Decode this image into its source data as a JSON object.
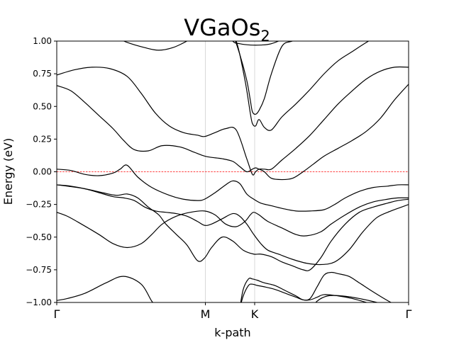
{
  "chart_data": {
    "type": "line",
    "title_main": "VGaOs",
    "title_sub": "2",
    "xlabel": "k-path",
    "ylabel": "Energy (eV)",
    "ylim": [
      -1.0,
      1.0
    ],
    "xlim": [
      0,
      1
    ],
    "grid": false,
    "legend": "none",
    "kpoints": [
      {
        "label": "Γ",
        "x": 0.0
      },
      {
        "label": "M",
        "x": 0.4225
      },
      {
        "label": "K",
        "x": 0.5625
      },
      {
        "label": "Γ",
        "x": 1.0
      }
    ],
    "yticks": [
      -1.0,
      -0.75,
      -0.5,
      -0.25,
      0.0,
      0.25,
      0.5,
      0.75,
      1.0
    ],
    "ytick_labels": [
      "−1.00",
      "−0.75",
      "−0.50",
      "−0.25",
      "0.00",
      "0.25",
      "0.50",
      "0.75",
      "1.00"
    ],
    "fermi_level": 0.0,
    "line_color": "#000000",
    "fermi_color": "#ff0000",
    "series": [
      {
        "x": [
          0.0,
          0.03,
          0.08,
          0.14,
          0.19,
          0.24,
          0.27,
          0.29,
          0.31,
          0.33,
          0.36,
          0.4,
          0.42,
          0.45,
          0.48,
          0.51,
          0.53,
          0.55,
          0.56,
          0.58,
          0.61,
          0.64,
          0.69,
          0.72,
          0.75,
          0.78,
          0.82,
          0.87,
          0.91,
          0.95,
          0.98,
          1.0
        ],
        "y": [
          -0.985,
          -0.97,
          -0.93,
          -0.85,
          -0.8,
          -0.86,
          -0.99,
          -1.05,
          -1.1,
          -1.1,
          -1.1,
          -1.1,
          -1.1,
          -1.1,
          -1.1,
          -1.1,
          -1.1,
          -1.1,
          -1.1,
          -1.1,
          -1.1,
          -1.1,
          -1.1,
          -1.1,
          -1.1,
          -1.1,
          -1.1,
          -1.1,
          -1.1,
          -1.1,
          -1.1,
          -1.1
        ]
      },
      {
        "x": [
          0.0,
          0.03,
          0.07,
          0.12,
          0.16,
          0.2,
          0.24,
          0.27,
          0.3,
          0.34,
          0.38,
          0.42,
          0.45,
          0.48,
          0.51,
          0.535,
          0.55,
          0.56,
          0.575,
          0.6,
          0.64,
          0.68,
          0.71,
          0.75,
          0.78,
          0.82,
          0.86,
          0.9,
          0.94,
          0.97,
          1.0
        ],
        "y": [
          -0.31,
          -0.34,
          -0.4,
          -0.48,
          -0.55,
          -0.58,
          -0.55,
          -0.48,
          -0.4,
          -0.34,
          -0.31,
          -0.3,
          -0.33,
          -0.4,
          -0.42,
          -0.38,
          -0.33,
          -0.31,
          -0.33,
          -0.38,
          -0.43,
          -0.48,
          -0.49,
          -0.46,
          -0.4,
          -0.33,
          -0.27,
          -0.23,
          -0.21,
          -0.2,
          -0.2
        ]
      },
      {
        "x": [
          0.0,
          0.03,
          0.08,
          0.13,
          0.17,
          0.2,
          0.23,
          0.26,
          0.29,
          0.31,
          0.34,
          0.37,
          0.4,
          0.42,
          0.44,
          0.47,
          0.5,
          0.53,
          0.56,
          0.58,
          0.61,
          0.64,
          0.67,
          0.7,
          0.72,
          0.75,
          0.78,
          0.82,
          0.86,
          0.9,
          0.94,
          0.97,
          1.0
        ],
        "y": [
          -0.1,
          -0.11,
          -0.13,
          -0.16,
          -0.18,
          -0.17,
          -0.2,
          -0.27,
          -0.33,
          -0.4,
          -0.48,
          -0.56,
          -0.68,
          -0.66,
          -0.58,
          -0.5,
          -0.53,
          -0.6,
          -0.63,
          -0.63,
          -0.65,
          -0.69,
          -0.72,
          -0.75,
          -0.75,
          -0.66,
          -0.53,
          -0.4,
          -0.31,
          -0.27,
          -0.24,
          -0.22,
          -0.21
        ]
      },
      {
        "x": [
          0.0,
          0.04,
          0.08,
          0.12,
          0.16,
          0.18,
          0.2,
          0.23,
          0.27,
          0.32,
          0.36,
          0.4,
          0.42,
          0.45,
          0.48,
          0.5,
          0.52,
          0.54,
          0.56,
          0.58,
          0.61,
          0.64,
          0.68,
          0.72,
          0.76,
          0.79,
          0.82,
          0.86,
          0.9,
          0.94,
          0.97,
          1.0
        ],
        "y": [
          0.02,
          0.01,
          -0.02,
          -0.03,
          -0.01,
          0.02,
          0.05,
          -0.04,
          -0.12,
          -0.18,
          -0.21,
          -0.22,
          -0.21,
          -0.16,
          -0.1,
          -0.07,
          -0.09,
          -0.17,
          -0.21,
          -0.24,
          -0.26,
          -0.28,
          -0.3,
          -0.3,
          -0.29,
          -0.25,
          -0.2,
          -0.15,
          -0.12,
          -0.11,
          -0.1,
          -0.1
        ]
      },
      {
        "x": [
          0.0,
          0.04,
          0.08,
          0.12,
          0.16,
          0.19,
          0.22,
          0.25,
          0.28,
          0.31,
          0.34,
          0.37,
          0.4,
          0.42,
          0.44,
          0.47,
          0.5,
          0.52,
          0.54,
          0.56,
          0.58,
          0.6,
          0.63,
          0.67,
          0.71,
          0.75,
          0.79,
          0.83,
          0.87,
          0.91,
          0.95,
          0.98,
          1.0
        ],
        "y": [
          -0.1,
          -0.11,
          -0.13,
          -0.16,
          -0.19,
          -0.2,
          -0.22,
          -0.27,
          -0.3,
          -0.31,
          -0.32,
          -0.34,
          -0.38,
          -0.41,
          -0.4,
          -0.36,
          -0.32,
          -0.34,
          -0.4,
          -0.48,
          -0.55,
          -0.6,
          -0.63,
          -0.67,
          -0.7,
          -0.71,
          -0.69,
          -0.6,
          -0.46,
          -0.35,
          -0.3,
          -0.27,
          -0.25
        ]
      },
      {
        "x": [
          0.0,
          0.04,
          0.08,
          0.12,
          0.16,
          0.19,
          0.22,
          0.26,
          0.3,
          0.35,
          0.39,
          0.42,
          0.44,
          0.47,
          0.5,
          0.52,
          0.54,
          0.556,
          0.565,
          0.575,
          0.59,
          0.61,
          0.64,
          0.67,
          0.7,
          0.73,
          0.76,
          0.8,
          0.84,
          0.88,
          0.92,
          0.96,
          1.0
        ],
        "y": [
          0.66,
          0.62,
          0.53,
          0.43,
          0.33,
          0.24,
          0.17,
          0.16,
          0.2,
          0.19,
          0.15,
          0.12,
          0.11,
          0.1,
          0.08,
          0.04,
          0.0,
          0.02,
          0.03,
          0.02,
          0.0,
          -0.05,
          -0.06,
          -0.05,
          0.0,
          0.06,
          0.12,
          0.18,
          0.24,
          0.31,
          0.41,
          0.55,
          0.67
        ]
      },
      {
        "x": [
          0.0,
          0.05,
          0.1,
          0.15,
          0.2,
          0.24,
          0.28,
          0.32,
          0.36,
          0.4,
          0.42,
          0.45,
          0.48,
          0.51,
          0.54,
          0.556,
          0.565,
          0.575,
          0.59,
          0.61,
          0.64,
          0.68,
          0.72,
          0.76,
          0.8,
          0.84,
          0.88,
          0.92,
          0.96,
          1.0
        ],
        "y": [
          0.74,
          0.78,
          0.8,
          0.79,
          0.73,
          0.6,
          0.45,
          0.35,
          0.3,
          0.28,
          0.27,
          0.3,
          0.33,
          0.32,
          0.1,
          -0.02,
          0.0,
          0.02,
          0.02,
          0.02,
          0.09,
          0.18,
          0.28,
          0.4,
          0.52,
          0.62,
          0.71,
          0.77,
          0.8,
          0.8
        ]
      },
      {
        "x": [
          0.0,
          0.05,
          0.1,
          0.15,
          0.2,
          0.25,
          0.29,
          0.33,
          0.37,
          0.4,
          0.42,
          0.45,
          0.48,
          0.51,
          0.535,
          0.55,
          0.556,
          0.565,
          0.575,
          0.59,
          0.61,
          0.64,
          0.68,
          0.72,
          0.76,
          0.8,
          0.84,
          0.88,
          0.92,
          0.96,
          1.0
        ],
        "y": [
          1.1,
          1.1,
          1.1,
          1.05,
          0.99,
          0.95,
          0.93,
          0.95,
          1.0,
          1.05,
          1.1,
          1.1,
          1.1,
          1.0,
          0.7,
          0.45,
          0.37,
          0.35,
          0.4,
          0.34,
          0.32,
          0.42,
          0.52,
          0.63,
          0.75,
          0.85,
          0.92,
          0.99,
          1.05,
          1.1,
          1.1
        ]
      },
      {
        "x": [
          0.48,
          0.5,
          0.52,
          0.54,
          0.55,
          0.556,
          0.565,
          0.575,
          0.59,
          0.61,
          0.64,
          0.67,
          0.7,
          0.73,
          0.76,
          0.79,
          0.82,
          0.85,
          0.88,
          0.92,
          0.96,
          1.0
        ],
        "y": [
          1.1,
          1.05,
          0.9,
          0.7,
          0.55,
          0.46,
          0.44,
          0.47,
          0.56,
          0.75,
          0.96,
          1.0,
          1.03,
          1.06,
          1.08,
          1.1,
          1.1,
          1.1,
          1.1,
          1.1,
          1.1,
          1.1
        ]
      },
      {
        "x": [
          0.48,
          0.5,
          0.52,
          0.55,
          0.58,
          0.61,
          0.65,
          0.7,
          0.75,
          0.8,
          0.85,
          0.9,
          0.95,
          1.0
        ],
        "y": [
          1.1,
          1.0,
          0.98,
          0.97,
          0.97,
          0.98,
          1.02,
          1.06,
          1.1,
          1.1,
          1.1,
          1.1,
          1.1,
          1.1
        ]
      },
      {
        "x": [
          0.52,
          0.53,
          0.545,
          0.556,
          0.57,
          0.59,
          0.62,
          0.65,
          0.68,
          0.7,
          0.72,
          0.74,
          0.76,
          0.8,
          0.84,
          0.88,
          0.92,
          0.96,
          1.0
        ],
        "y": [
          -1.05,
          -0.95,
          -0.87,
          -0.86,
          -0.87,
          -0.88,
          -0.9,
          -0.93,
          -0.96,
          -0.98,
          -0.98,
          -0.96,
          -0.94,
          -0.95,
          -0.97,
          -1.0,
          -1.03,
          -1.07,
          -1.1
        ]
      },
      {
        "x": [
          0.52,
          0.53,
          0.545,
          0.556,
          0.57,
          0.59,
          0.62,
          0.65,
          0.68,
          0.7,
          0.72,
          0.74,
          0.76,
          0.78,
          0.8,
          0.83,
          0.86,
          0.9,
          0.95,
          1.0
        ],
        "y": [
          -1.05,
          -0.9,
          -0.82,
          -0.82,
          -0.83,
          -0.85,
          -0.87,
          -0.91,
          -0.95,
          -0.98,
          -0.97,
          -0.88,
          -0.79,
          -0.77,
          -0.78,
          -0.8,
          -0.85,
          -0.92,
          -1.0,
          -1.06
        ]
      },
      {
        "x": [
          0.7,
          0.72,
          0.74,
          0.77,
          0.81,
          0.86,
          0.91,
          0.96,
          1.0
        ],
        "y": [
          -1.1,
          -1.06,
          -0.99,
          -0.95,
          -0.95,
          -0.97,
          -1.0,
          -1.04,
          -1.08
        ]
      }
    ]
  }
}
